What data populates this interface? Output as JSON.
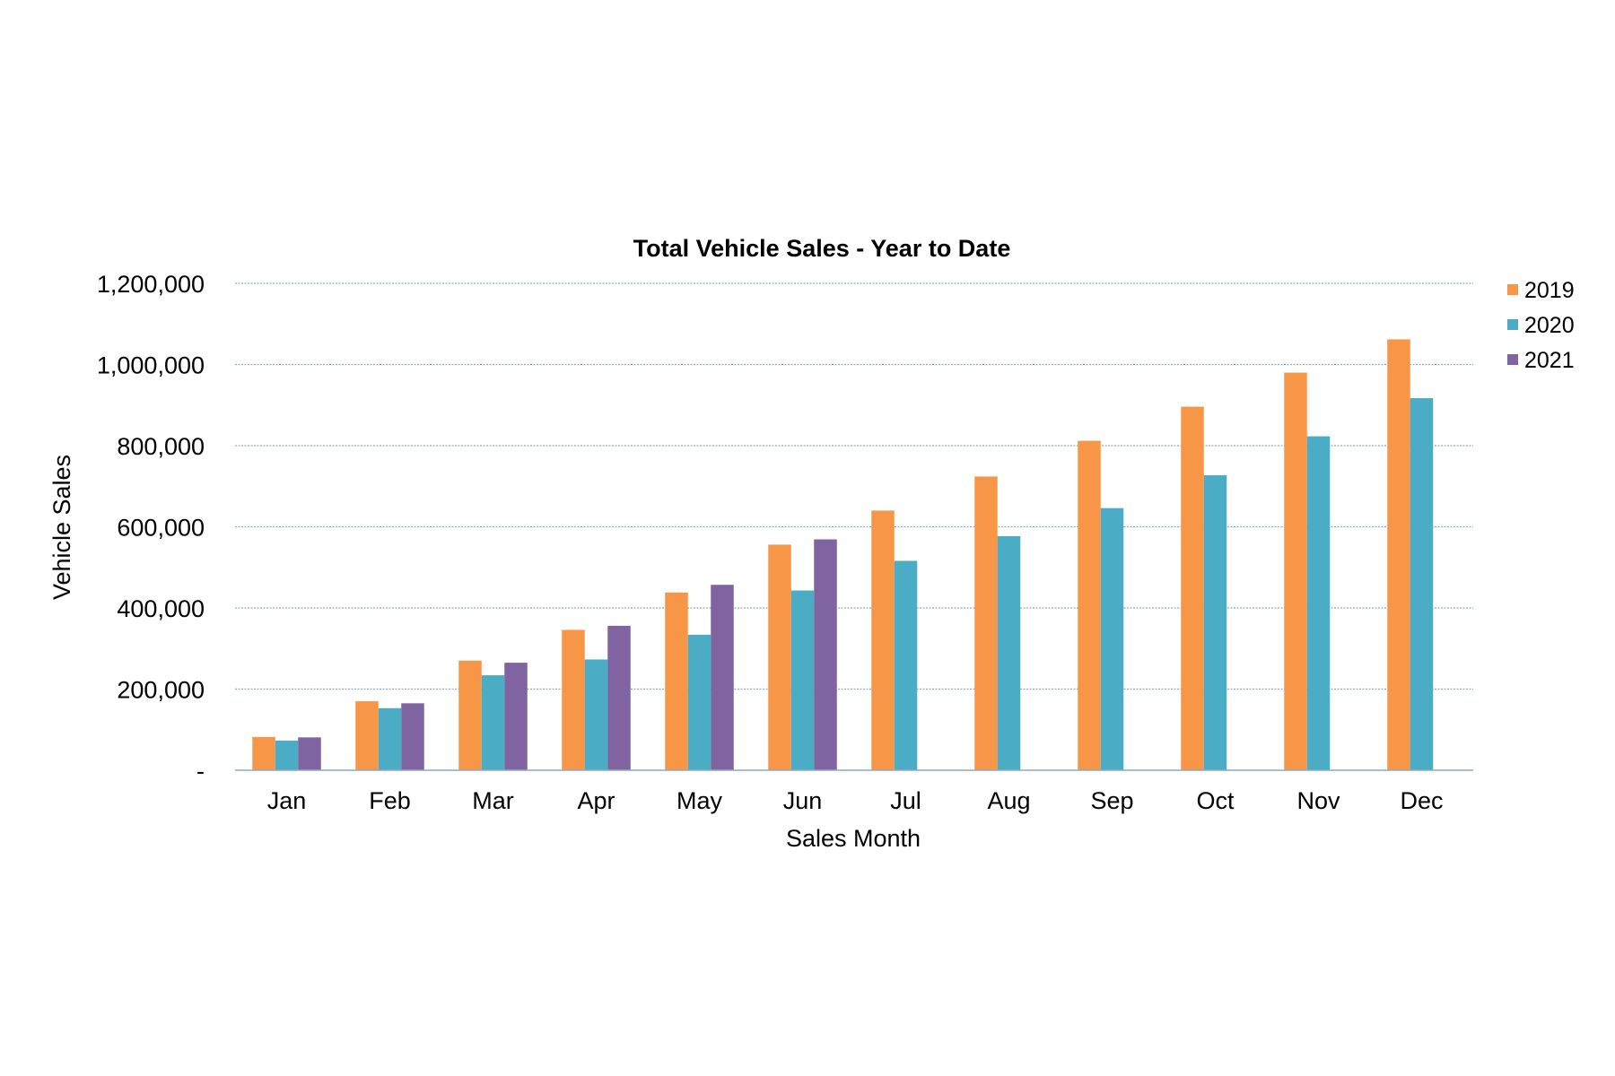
{
  "chart_data": {
    "type": "bar",
    "title": "Total Vehicle Sales - Year to Date",
    "xlabel": "Sales Month",
    "ylabel": "Vehicle Sales",
    "categories": [
      "Jan",
      "Feb",
      "Mar",
      "Apr",
      "May",
      "Jun",
      "Jul",
      "Aug",
      "Sep",
      "Oct",
      "Nov",
      "Dec"
    ],
    "ylim": [
      0,
      1200000
    ],
    "yticks": [
      0,
      200000,
      400000,
      600000,
      800000,
      1000000,
      1200000
    ],
    "ytick_labels": [
      "-",
      "200,000",
      "400,000",
      "600,000",
      "800,000",
      "1,000,000",
      "1,200,000"
    ],
    "grid": true,
    "legend_position": "right",
    "series": [
      {
        "name": "2019",
        "color": "#f79646",
        "values": [
          82000,
          170000,
          270000,
          346000,
          438000,
          556000,
          640000,
          724000,
          812000,
          896000,
          980000,
          1062000
        ]
      },
      {
        "name": "2020",
        "color": "#4bacc6",
        "values": [
          73000,
          153000,
          234000,
          273000,
          334000,
          443000,
          516000,
          577000,
          646000,
          727000,
          823000,
          917000
        ]
      },
      {
        "name": "2021",
        "color": "#8064a2",
        "values": [
          81000,
          165000,
          265000,
          356000,
          457000,
          569000,
          null,
          null,
          null,
          null,
          null,
          null
        ]
      }
    ]
  }
}
